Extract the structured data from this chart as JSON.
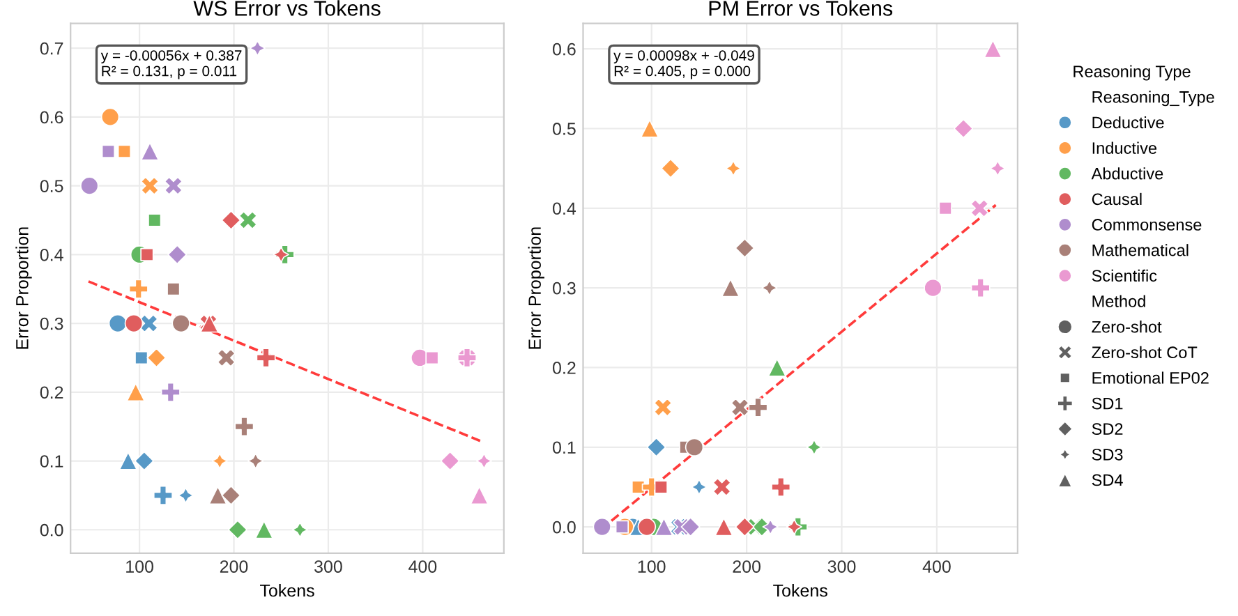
{
  "chart_data": [
    {
      "type": "scatter",
      "title": "WS Error vs Tokens",
      "xlabel": "Tokens",
      "ylabel": "Error Proportion",
      "xlim": [
        27,
        486
      ],
      "ylim": [
        -0.034,
        0.736
      ],
      "xticks": [
        100,
        200,
        300,
        400
      ],
      "yticks": [
        {
          "value": 0,
          "label": "0.0"
        },
        0.1,
        0.2,
        0.3,
        0.4,
        0.5,
        0.6,
        0.7
      ],
      "grid": true,
      "legend": "right",
      "annotations": [
        "y = -0.00056x + 0.387\nR² = 0.131, p = 0.011"
      ],
      "series": [
        {
          "name": "Deductive",
          "color": "#5799c7",
          "x": [
            77,
            110,
            102,
            88,
            105,
            125,
            149
          ],
          "values": [
            0.3,
            0.3,
            0.25,
            0.1,
            0.1,
            0.05,
            0.05
          ],
          "marker": [
            "circle",
            "cross",
            "square",
            "triangle",
            "diamond",
            "plus",
            "star"
          ]
        },
        {
          "name": "Inductive",
          "color": "#ff9f4a",
          "x": [
            69,
            84,
            111,
            99,
            118,
            96,
            185
          ],
          "values": [
            0.6,
            0.55,
            0.5,
            0.35,
            0.25,
            0.2,
            0.1
          ],
          "marker": [
            "circle",
            "square",
            "cross",
            "plus",
            "diamond",
            "triangle",
            "star"
          ]
        },
        {
          "name": "Abductive",
          "color": "#61b861",
          "x": [
            116,
            215,
            100,
            254,
            204,
            232,
            270
          ],
          "values": [
            0.45,
            0.45,
            0.4,
            0.4,
            0.0,
            0.0,
            0.0
          ],
          "marker": [
            "square",
            "cross",
            "circle",
            "plus",
            "diamond",
            "triangle",
            "star"
          ]
        },
        {
          "name": "Causal",
          "color": "#e05d5e",
          "x": [
            197,
            108,
            250,
            94,
            173,
            174,
            234
          ],
          "values": [
            0.45,
            0.4,
            0.4,
            0.3,
            0.3,
            0.3,
            0.25
          ],
          "marker": [
            "diamond",
            "square",
            "star",
            "circle",
            "cross",
            "triangle",
            "plus"
          ]
        },
        {
          "name": "Commonsense",
          "color": "#af8dcd",
          "x": [
            225,
            67,
            111,
            47,
            136,
            140,
            133
          ],
          "values": [
            0.7,
            0.55,
            0.55,
            0.5,
            0.5,
            0.4,
            0.2
          ],
          "marker": [
            "star",
            "square",
            "triangle",
            "circle",
            "cross",
            "diamond",
            "plus"
          ]
        },
        {
          "name": "Mathematical",
          "color": "#a98078",
          "x": [
            136,
            144,
            192,
            211,
            223,
            183,
            197
          ],
          "values": [
            0.35,
            0.3,
            0.25,
            0.15,
            0.1,
            0.05,
            0.05
          ],
          "marker": [
            "square",
            "circle",
            "cross",
            "plus",
            "star",
            "triangle",
            "diamond"
          ]
        },
        {
          "name": "Scientific",
          "color": "#ea99d1",
          "x": [
            397,
            410,
            447,
            447,
            429,
            465,
            460
          ],
          "values": [
            0.25,
            0.25,
            0.25,
            0.25,
            0.1,
            0.1,
            0.05
          ],
          "marker": [
            "circle",
            "square",
            "cross",
            "plus",
            "diamond",
            "star",
            "triangle"
          ]
        },
        {
          "type": "line",
          "color": "#ff3b3b",
          "line_style": "dashed",
          "x": [
            46,
            463
          ],
          "values": [
            0.361,
            0.128
          ]
        }
      ]
    },
    {
      "type": "scatter",
      "title": "PM Error vs Tokens",
      "xlabel": "Tokens",
      "ylabel": "Error Proportion",
      "xlim": [
        28,
        485
      ],
      "ylim": [
        -0.033,
        0.632
      ],
      "xticks": [
        100,
        200,
        300,
        400
      ],
      "yticks": [
        {
          "value": 0,
          "label": "0.0"
        },
        0.1,
        0.2,
        0.3,
        0.4,
        0.5,
        0.6
      ],
      "grid": true,
      "legend": "right",
      "legend_title": "Reasoning Type",
      "annotations": [
        "y = 0.00098x + -0.049\nR² = 0.405, p = 0.000",
        "Reasoning_Type",
        "Method"
      ],
      "series": [
        {
          "name": "Deductive",
          "color": "#5799c7",
          "x": [
            105,
            150,
            80,
            86,
            129
          ],
          "values": [
            0.1,
            0.05,
            0.0,
            0.0,
            0.0
          ],
          "marker": [
            "diamond",
            "star",
            "circle",
            "triangle",
            "cross"
          ]
        },
        {
          "name": "Inductive",
          "color": "#ff9f4a",
          "x": [
            98,
            120,
            186,
            112,
            86,
            100,
            72
          ],
          "values": [
            0.5,
            0.45,
            0.45,
            0.15,
            0.05,
            0.05,
            0.0
          ],
          "marker": [
            "triangle",
            "diamond",
            "star",
            "cross",
            "square",
            "plus",
            "circle"
          ]
        },
        {
          "name": "Abductive",
          "color": "#61b861",
          "x": [
            232,
            271,
            102,
            209,
            216,
            254
          ],
          "values": [
            0.2,
            0.1,
            0.0,
            0.0,
            0.0,
            0.0
          ],
          "marker": [
            "triangle",
            "star",
            "circle",
            "cross",
            "diamond",
            "plus"
          ]
        },
        {
          "name": "Causal",
          "color": "#e05d5e",
          "x": [
            110,
            174,
            236,
            95,
            176,
            198,
            250
          ],
          "values": [
            0.05,
            0.05,
            0.05,
            0.0,
            0.0,
            0.0,
            0.0
          ],
          "marker": [
            "square",
            "cross",
            "plus",
            "circle",
            "triangle",
            "diamond",
            "star"
          ]
        },
        {
          "name": "Commonsense",
          "color": "#af8dcd",
          "x": [
            48,
            69,
            113,
            132,
            141,
            225
          ],
          "values": [
            0.0,
            0.0,
            0.0,
            0.0,
            0.0,
            0.0
          ],
          "marker": [
            "circle",
            "square",
            "triangle",
            "cross",
            "diamond",
            "star"
          ]
        },
        {
          "name": "Mathematical",
          "color": "#a98078",
          "x": [
            198,
            183,
            224,
            193,
            212,
            136,
            145
          ],
          "values": [
            0.35,
            0.3,
            0.3,
            0.15,
            0.15,
            0.1,
            0.1
          ],
          "marker": [
            "diamond",
            "triangle",
            "star",
            "cross",
            "plus",
            "square",
            "circle"
          ]
        },
        {
          "name": "Scientific",
          "color": "#ea99d1",
          "x": [
            459,
            428,
            464,
            409,
            445,
            396,
            446
          ],
          "values": [
            0.6,
            0.5,
            0.45,
            0.4,
            0.4,
            0.3,
            0.3
          ],
          "marker": [
            "triangle",
            "diamond",
            "star",
            "square",
            "cross",
            "circle",
            "plus"
          ]
        },
        {
          "type": "line",
          "color": "#ff3b3b",
          "line_style": "dashed",
          "x": [
            47,
            462
          ],
          "values": [
            -0.003,
            0.404
          ]
        },
        {
          "name": "Zero-shot",
          "color": "#606060",
          "marker": "circle"
        },
        {
          "name": "Zero-shot CoT",
          "color": "#606060",
          "marker": "cross"
        },
        {
          "name": "Emotional EP02",
          "color": "#606060",
          "marker": "square"
        },
        {
          "name": "SD1",
          "color": "#606060",
          "marker": "plus"
        },
        {
          "name": "SD2",
          "color": "#606060",
          "marker": "diamond"
        },
        {
          "name": "SD3",
          "color": "#606060",
          "marker": "star"
        },
        {
          "name": "SD4",
          "color": "#606060",
          "marker": "triangle"
        }
      ]
    }
  ]
}
